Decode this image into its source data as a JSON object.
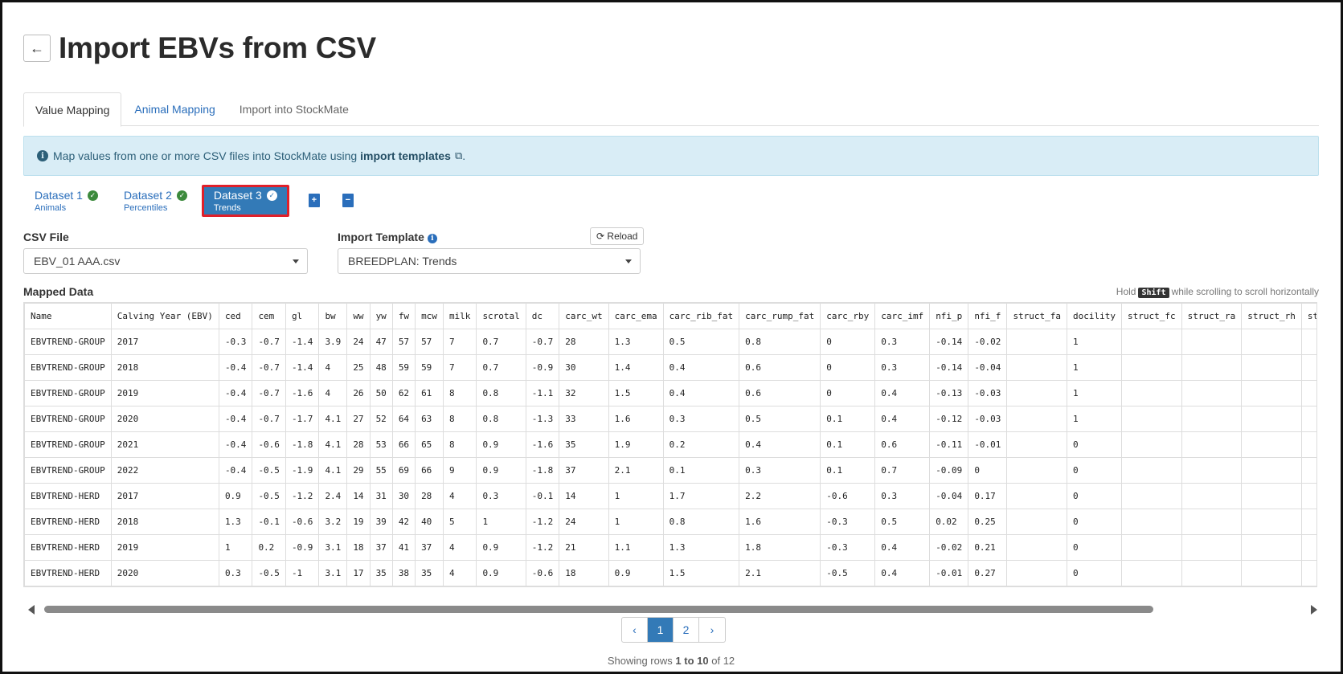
{
  "header": {
    "back_icon": "←",
    "title": "Import EBVs from CSV"
  },
  "tabs": [
    {
      "label": "Value Mapping"
    },
    {
      "label": "Animal Mapping"
    },
    {
      "label": "Import into StockMate"
    }
  ],
  "alert": {
    "icon": "i",
    "text": "Map values from one or more CSV files into StockMate using",
    "link": "import templates",
    "ext_icon": "⧉",
    "suffix": "."
  },
  "datasets": [
    {
      "title": "Dataset 1",
      "sub": "Animals"
    },
    {
      "title": "Dataset 2",
      "sub": "Percentiles"
    },
    {
      "title": "Dataset 3",
      "sub": "Trends"
    }
  ],
  "check_icon": "✓",
  "add_file_icon": "+",
  "remove_file_icon": "−",
  "csv": {
    "label": "CSV File",
    "value": "EBV_01 AAA.csv"
  },
  "template": {
    "label": "Import Template",
    "info_icon": "i",
    "value": "BREEDPLAN: Trends",
    "reload_icon": "⟳",
    "reload_label": "Reload"
  },
  "mapped": {
    "label": "Mapped Data",
    "hint_pre": "Hold",
    "hint_key": "Shift",
    "hint_post": "while scrolling to scroll horizontally"
  },
  "table": {
    "columns": [
      "Name",
      "Calving Year (EBV)",
      "ced",
      "cem",
      "gl",
      "bw",
      "ww",
      "yw",
      "fw",
      "mcw",
      "milk",
      "scrotal",
      "dc",
      "carc_wt",
      "carc_ema",
      "carc_rib_fat",
      "carc_rump_fat",
      "carc_rby",
      "carc_imf",
      "nfi_p",
      "nfi_f",
      "struct_fa",
      "docility",
      "struct_fc",
      "struct_ra",
      "struct_rh",
      "struct_rs"
    ],
    "rows": [
      [
        "EBVTREND-GROUP",
        "2017",
        "-0.3",
        "-0.7",
        "-1.4",
        "3.9",
        "24",
        "47",
        "57",
        "57",
        "7",
        "0.7",
        "-0.7",
        "28",
        "1.3",
        "0.5",
        "0.8",
        "0",
        "0.3",
        "-0.14",
        "-0.02",
        "",
        "1",
        "",
        "",
        "",
        ""
      ],
      [
        "EBVTREND-GROUP",
        "2018",
        "-0.4",
        "-0.7",
        "-1.4",
        "4",
        "25",
        "48",
        "59",
        "59",
        "7",
        "0.7",
        "-0.9",
        "30",
        "1.4",
        "0.4",
        "0.6",
        "0",
        "0.3",
        "-0.14",
        "-0.04",
        "",
        "1",
        "",
        "",
        "",
        ""
      ],
      [
        "EBVTREND-GROUP",
        "2019",
        "-0.4",
        "-0.7",
        "-1.6",
        "4",
        "26",
        "50",
        "62",
        "61",
        "8",
        "0.8",
        "-1.1",
        "32",
        "1.5",
        "0.4",
        "0.6",
        "0",
        "0.4",
        "-0.13",
        "-0.03",
        "",
        "1",
        "",
        "",
        "",
        ""
      ],
      [
        "EBVTREND-GROUP",
        "2020",
        "-0.4",
        "-0.7",
        "-1.7",
        "4.1",
        "27",
        "52",
        "64",
        "63",
        "8",
        "0.8",
        "-1.3",
        "33",
        "1.6",
        "0.3",
        "0.5",
        "0.1",
        "0.4",
        "-0.12",
        "-0.03",
        "",
        "1",
        "",
        "",
        "",
        ""
      ],
      [
        "EBVTREND-GROUP",
        "2021",
        "-0.4",
        "-0.6",
        "-1.8",
        "4.1",
        "28",
        "53",
        "66",
        "65",
        "8",
        "0.9",
        "-1.6",
        "35",
        "1.9",
        "0.2",
        "0.4",
        "0.1",
        "0.6",
        "-0.11",
        "-0.01",
        "",
        "0",
        "",
        "",
        "",
        ""
      ],
      [
        "EBVTREND-GROUP",
        "2022",
        "-0.4",
        "-0.5",
        "-1.9",
        "4.1",
        "29",
        "55",
        "69",
        "66",
        "9",
        "0.9",
        "-1.8",
        "37",
        "2.1",
        "0.1",
        "0.3",
        "0.1",
        "0.7",
        "-0.09",
        "0",
        "",
        "0",
        "",
        "",
        "",
        ""
      ],
      [
        "EBVTREND-HERD",
        "2017",
        "0.9",
        "-0.5",
        "-1.2",
        "2.4",
        "14",
        "31",
        "30",
        "28",
        "4",
        "0.3",
        "-0.1",
        "14",
        "1",
        "1.7",
        "2.2",
        "-0.6",
        "0.3",
        "-0.04",
        "0.17",
        "",
        "0",
        "",
        "",
        "",
        ""
      ],
      [
        "EBVTREND-HERD",
        "2018",
        "1.3",
        "-0.1",
        "-0.6",
        "3.2",
        "19",
        "39",
        "42",
        "40",
        "5",
        "1",
        "-1.2",
        "24",
        "1",
        "0.8",
        "1.6",
        "-0.3",
        "0.5",
        "0.02",
        "0.25",
        "",
        "0",
        "",
        "",
        "",
        ""
      ],
      [
        "EBVTREND-HERD",
        "2019",
        "1",
        "0.2",
        "-0.9",
        "3.1",
        "18",
        "37",
        "41",
        "37",
        "4",
        "0.9",
        "-1.2",
        "21",
        "1.1",
        "1.3",
        "1.8",
        "-0.3",
        "0.4",
        "-0.02",
        "0.21",
        "",
        "0",
        "",
        "",
        "",
        ""
      ],
      [
        "EBVTREND-HERD",
        "2020",
        "0.3",
        "-0.5",
        "-1",
        "3.1",
        "17",
        "35",
        "38",
        "35",
        "4",
        "0.9",
        "-0.6",
        "18",
        "0.9",
        "1.5",
        "2.1",
        "-0.5",
        "0.4",
        "-0.01",
        "0.27",
        "",
        "0",
        "",
        "",
        "",
        ""
      ]
    ]
  },
  "pagination": {
    "prev_icon": "‹",
    "pages": [
      "1",
      "2"
    ],
    "next_icon": "›"
  },
  "showing": {
    "pre": "Showing rows",
    "from": "1",
    "to_word": "to",
    "to": "10",
    "of_word": "of",
    "total": "12"
  }
}
